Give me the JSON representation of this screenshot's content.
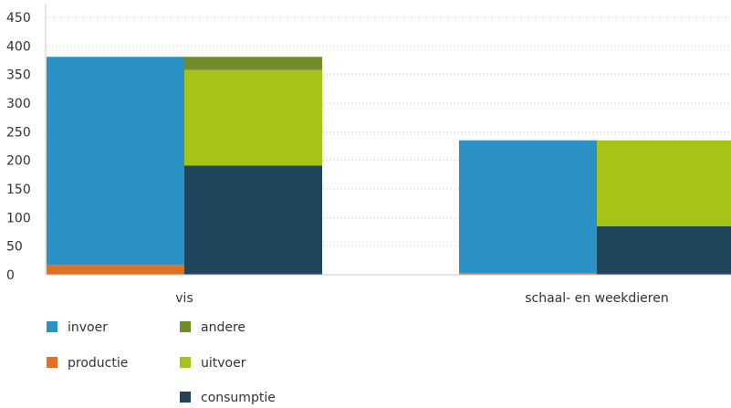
{
  "chart_data": {
    "type": "bar",
    "stacked": true,
    "ylim": [
      0,
      450
    ],
    "yticks": [
      0,
      50,
      100,
      150,
      200,
      250,
      300,
      350,
      400,
      450
    ],
    "grid": true,
    "legend_position": "bottom-left",
    "categories": [
      "vis",
      "schaal- en weekdieren"
    ],
    "groups": [
      {
        "category": "vis",
        "stacks": [
          [
            {
              "series": "productie",
              "value": 17
            },
            {
              "series": "invoer",
              "value": 364
            }
          ],
          [
            {
              "series": "consumptie",
              "value": 191
            },
            {
              "series": "uitvoer",
              "value": 167
            },
            {
              "series": "andere",
              "value": 23
            }
          ]
        ]
      },
      {
        "category": "schaal- en weekdieren",
        "stacks": [
          [
            {
              "series": "productie",
              "value": 3
            },
            {
              "series": "invoer",
              "value": 232
            }
          ],
          [
            {
              "series": "consumptie",
              "value": 85
            },
            {
              "series": "uitvoer",
              "value": 150
            }
          ]
        ]
      }
    ],
    "series": [
      {
        "name": "invoer",
        "color": "#2a92c4"
      },
      {
        "name": "productie",
        "color": "#e07124"
      },
      {
        "name": "andere",
        "color": "#728c2c"
      },
      {
        "name": "uitvoer",
        "color": "#a8c317"
      },
      {
        "name": "consumptie",
        "color": "#1f465b"
      }
    ]
  }
}
